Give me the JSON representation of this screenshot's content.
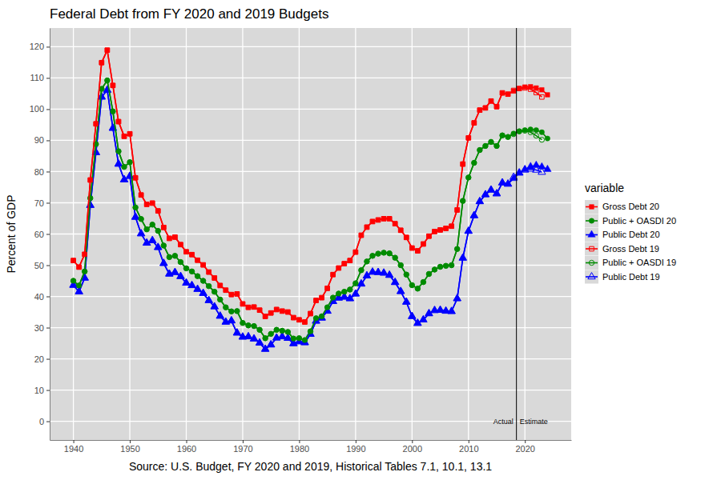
{
  "chart_data": {
    "type": "line",
    "title": "Federal Debt from FY 2020 and 2019 Budgets",
    "x_label": "Source: U.S. Budget, FY 2020 and 2019, Historical Tables 7.1, 10.1, 13.1",
    "y_label": "Percent of GDP",
    "legend_title": "variable",
    "legend": "right",
    "grid": true,
    "xlim": [
      1935.8,
      2028.2
    ],
    "xticks": [
      1940,
      1950,
      1960,
      1970,
      1980,
      1990,
      2000,
      2010,
      2020
    ],
    "ylim": [
      -6,
      126
    ],
    "yticks": [
      0,
      10,
      20,
      30,
      40,
      50,
      60,
      70,
      80,
      90,
      100,
      110,
      120
    ],
    "reference_line": {
      "x": 2018.5,
      "label_y": 0,
      "labels": [
        "Actual",
        "Estimate"
      ]
    },
    "x": [
      1940,
      1941,
      1942,
      1943,
      1944,
      1945,
      1946,
      1947,
      1948,
      1949,
      1950,
      1951,
      1952,
      1953,
      1954,
      1955,
      1956,
      1957,
      1958,
      1959,
      1960,
      1961,
      1962,
      1963,
      1964,
      1965,
      1966,
      1967,
      1968,
      1969,
      1970,
      1971,
      1972,
      1973,
      1974,
      1975,
      1976,
      1977,
      1978,
      1979,
      1980,
      1981,
      1982,
      1983,
      1984,
      1985,
      1986,
      1987,
      1988,
      1989,
      1990,
      1991,
      1992,
      1993,
      1994,
      1995,
      1996,
      1997,
      1998,
      1999,
      2000,
      2001,
      2002,
      2003,
      2004,
      2005,
      2006,
      2007,
      2008,
      2009,
      2010,
      2011,
      2012,
      2013,
      2014,
      2015,
      2016,
      2017,
      2018,
      2019,
      2020,
      2021,
      2022,
      2023,
      2024
    ],
    "series": [
      {
        "name": "Gross Debt 20",
        "color": "#ff0000",
        "marker": "square",
        "line_style": "solid",
        "values": [
          51.5,
          49.4,
          53.5,
          77.3,
          95.3,
          114.9,
          118.9,
          107.6,
          96.0,
          91.3,
          92.1,
          78.0,
          72.5,
          69.5,
          69.9,
          67.4,
          62.1,
          58.6,
          59.0,
          56.6,
          54.3,
          53.4,
          51.6,
          50.1,
          47.8,
          45.9,
          43.5,
          42.0,
          40.6,
          40.8,
          37.6,
          36.5,
          36.6,
          35.6,
          33.6,
          34.7,
          35.8,
          35.3,
          35.0,
          33.2,
          32.5,
          31.8,
          34.5,
          38.7,
          39.6,
          42.6,
          47.0,
          49.1,
          50.5,
          51.5,
          54.2,
          59.6,
          62.2,
          64.0,
          64.5,
          64.9,
          64.9,
          63.3,
          61.2,
          58.9,
          55.5,
          54.6,
          56.8,
          59.3,
          60.8,
          61.3,
          61.8,
          62.5,
          67.7,
          82.4,
          90.8,
          95.6,
          99.7,
          100.4,
          102.6,
          100.8,
          105.2,
          104.8,
          105.8,
          106.6,
          107.1,
          107.2,
          106.8,
          106.2,
          104.6
        ]
      },
      {
        "name": "Public + OASDI 20",
        "color": "#008b00",
        "marker": "circle",
        "line_style": "solid",
        "values": [
          45.0,
          43.5,
          48.0,
          71.5,
          88.8,
          106.5,
          109.2,
          99.3,
          86.5,
          81.5,
          83.0,
          68.5,
          64.8,
          61.5,
          63.0,
          61.0,
          56.3,
          52.6,
          53.0,
          51.0,
          49.0,
          48.0,
          46.5,
          45.0,
          43.3,
          41.5,
          39.0,
          36.5,
          35.2,
          35.3,
          31.5,
          30.7,
          30.5,
          29.3,
          26.6,
          28.0,
          29.3,
          29.0,
          28.6,
          26.5,
          26.6,
          26.0,
          28.8,
          33.0,
          33.6,
          36.5,
          39.6,
          40.9,
          41.5,
          42.2,
          44.2,
          48.4,
          51.2,
          53.0,
          53.7,
          54.0,
          53.8,
          52.4,
          50.0,
          47.0,
          43.6,
          42.5,
          44.6,
          47.2,
          48.6,
          49.5,
          49.8,
          50.0,
          55.2,
          70.6,
          78.1,
          82.8,
          86.9,
          88.2,
          89.5,
          88.2,
          91.6,
          91.1,
          92.2,
          92.9,
          93.3,
          93.5,
          93.3,
          92.6,
          90.6
        ]
      },
      {
        "name": "Public Debt 20",
        "color": "#0000ff",
        "marker": "triangle",
        "line_style": "solid",
        "values": [
          43.6,
          41.5,
          45.9,
          69.2,
          86.1,
          103.9,
          106.1,
          93.9,
          82.4,
          77.4,
          78.5,
          65.4,
          60.1,
          57.1,
          57.9,
          55.7,
          50.6,
          47.2,
          47.7,
          46.4,
          44.3,
          43.5,
          42.3,
          41.0,
          38.7,
          36.7,
          33.7,
          31.8,
          32.2,
          28.3,
          27.0,
          27.1,
          26.4,
          25.1,
          23.1,
          24.5,
          26.7,
          27.1,
          26.6,
          24.9,
          25.5,
          25.2,
          27.9,
          32.1,
          33.1,
          35.3,
          38.4,
          39.5,
          39.8,
          39.3,
          40.8,
          44.0,
          46.6,
          47.8,
          47.7,
          47.5,
          46.8,
          44.5,
          41.6,
          38.2,
          33.6,
          31.4,
          32.5,
          34.5,
          35.5,
          35.6,
          35.3,
          35.2,
          39.3,
          52.3,
          60.9,
          65.9,
          70.4,
          72.6,
          74.1,
          72.9,
          76.4,
          76.0,
          77.8,
          79.5,
          80.7,
          81.6,
          82.0,
          81.5,
          80.7
        ]
      },
      {
        "name": "Gross Debt 19",
        "color": "#ff0000",
        "marker": "square-open",
        "line_style": "solid",
        "values": [
          51.5,
          49.4,
          53.5,
          77.3,
          95.3,
          114.9,
          118.9,
          107.6,
          96.0,
          91.3,
          92.1,
          78.0,
          72.5,
          69.5,
          69.9,
          67.4,
          62.1,
          58.6,
          59.0,
          56.6,
          54.3,
          53.4,
          51.6,
          50.1,
          47.8,
          45.9,
          43.5,
          42.0,
          40.6,
          40.8,
          37.6,
          36.5,
          36.6,
          35.6,
          33.6,
          34.7,
          35.8,
          35.3,
          35.0,
          33.2,
          32.5,
          31.8,
          34.5,
          38.7,
          39.6,
          42.6,
          47.0,
          49.1,
          50.5,
          51.5,
          54.2,
          59.6,
          62.2,
          64.0,
          64.5,
          64.9,
          64.9,
          63.3,
          61.2,
          58.9,
          55.5,
          54.6,
          56.8,
          59.3,
          60.8,
          61.3,
          61.8,
          62.5,
          67.7,
          82.4,
          90.8,
          95.6,
          99.7,
          100.4,
          102.6,
          100.8,
          105.2,
          104.8,
          106.0,
          106.6,
          106.8,
          106.4,
          105.3,
          103.9,
          null
        ]
      },
      {
        "name": "Public + OASDI 19",
        "color": "#008b00",
        "marker": "circle-open",
        "line_style": "solid",
        "values": [
          45.0,
          43.5,
          48.0,
          71.5,
          88.8,
          106.5,
          109.2,
          99.3,
          86.5,
          81.5,
          83.0,
          68.5,
          64.8,
          61.5,
          63.0,
          61.0,
          56.3,
          52.6,
          53.0,
          51.0,
          49.0,
          48.0,
          46.5,
          45.0,
          43.3,
          41.5,
          39.0,
          36.5,
          35.2,
          35.3,
          31.5,
          30.7,
          30.5,
          29.3,
          26.6,
          28.0,
          29.3,
          29.0,
          28.6,
          26.5,
          26.6,
          26.0,
          28.8,
          33.0,
          33.6,
          36.5,
          39.6,
          40.9,
          41.5,
          42.2,
          44.2,
          48.4,
          51.2,
          53.0,
          53.7,
          54.0,
          53.8,
          52.4,
          50.0,
          47.0,
          43.6,
          42.5,
          44.6,
          47.2,
          48.6,
          49.5,
          49.8,
          50.0,
          55.2,
          70.6,
          78.1,
          82.8,
          86.9,
          88.2,
          89.5,
          88.2,
          91.6,
          91.1,
          92.0,
          92.9,
          93.1,
          92.6,
          91.5,
          90.2,
          null
        ]
      },
      {
        "name": "Public Debt 19",
        "color": "#0000ff",
        "marker": "triangle-open",
        "line_style": "solid",
        "values": [
          43.6,
          41.5,
          45.9,
          69.2,
          86.1,
          103.9,
          106.1,
          93.9,
          82.4,
          77.4,
          78.5,
          65.4,
          60.1,
          57.1,
          57.9,
          55.7,
          50.6,
          47.2,
          47.7,
          46.4,
          44.3,
          43.5,
          42.3,
          41.0,
          38.7,
          36.7,
          33.7,
          31.8,
          32.2,
          28.3,
          27.0,
          27.1,
          26.4,
          25.1,
          23.1,
          24.5,
          26.7,
          27.1,
          26.6,
          24.9,
          25.5,
          25.2,
          27.9,
          32.1,
          33.1,
          35.3,
          38.4,
          39.5,
          39.8,
          39.3,
          40.8,
          44.0,
          46.6,
          47.8,
          47.7,
          47.5,
          46.8,
          44.5,
          41.6,
          38.2,
          33.6,
          31.4,
          32.5,
          34.5,
          35.5,
          35.6,
          35.3,
          35.2,
          39.3,
          52.3,
          60.9,
          65.9,
          70.4,
          72.6,
          74.1,
          72.9,
          76.4,
          76.0,
          78.2,
          79.6,
          80.5,
          80.8,
          80.5,
          79.8,
          null
        ]
      }
    ]
  }
}
